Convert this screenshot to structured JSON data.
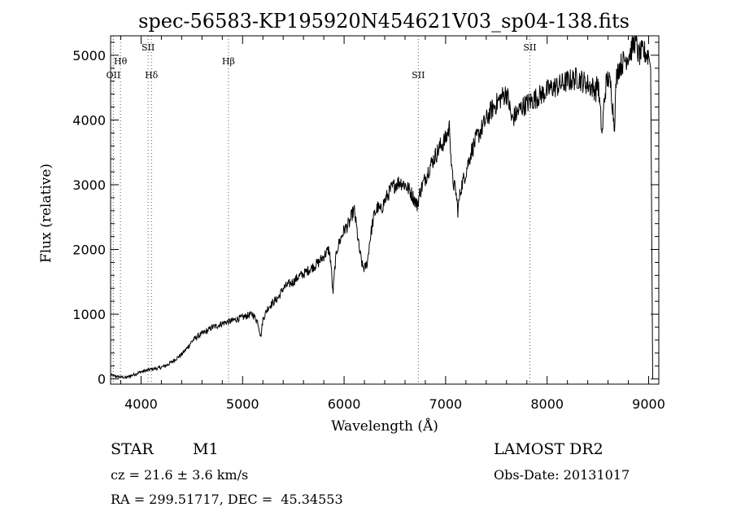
{
  "chart_data": {
    "type": "line",
    "title": "spec-56583-KP195920N454621V03_sp04-138.fits",
    "xlabel": "Wavelength (Å)",
    "ylabel": "Flux (relative)",
    "xlim": [
      3700,
      9100
    ],
    "ylim": [
      -80,
      5300
    ],
    "x_ticks": [
      4000,
      5000,
      6000,
      7000,
      8000,
      9000
    ],
    "y_ticks": [
      0,
      1000,
      2000,
      3000,
      4000,
      5000
    ],
    "grid": false,
    "line_markers": [
      {
        "label": "OII",
        "x": 3727,
        "row": 3
      },
      {
        "label": "Hθ",
        "x": 3797,
        "row": 2
      },
      {
        "label": "SII",
        "x": 4069,
        "row": 1
      },
      {
        "label": "Hδ",
        "x": 4102,
        "row": 3
      },
      {
        "label": "Hβ",
        "x": 4861,
        "row": 2
      },
      {
        "label": "SII",
        "x": 6731,
        "row": 3
      },
      {
        "label": "SII",
        "x": 7830,
        "row": 1
      }
    ],
    "series": [
      {
        "name": "flux",
        "x": [
          3700,
          3750,
          3800,
          3850,
          3900,
          3950,
          4000,
          4050,
          4100,
          4150,
          4200,
          4250,
          4300,
          4350,
          4400,
          4450,
          4500,
          4550,
          4600,
          4650,
          4700,
          4750,
          4800,
          4850,
          4900,
          4950,
          5000,
          5050,
          5100,
          5150,
          5180,
          5200,
          5250,
          5300,
          5350,
          5400,
          5450,
          5500,
          5550,
          5600,
          5650,
          5700,
          5750,
          5800,
          5850,
          5870,
          5890,
          5910,
          5930,
          5950,
          6000,
          6050,
          6080,
          6100,
          6130,
          6150,
          6180,
          6200,
          6230,
          6250,
          6280,
          6300,
          6330,
          6360,
          6400,
          6450,
          6500,
          6550,
          6600,
          6650,
          6700,
          6720,
          6750,
          6800,
          6850,
          6900,
          6950,
          7000,
          7040,
          7050,
          7060,
          7080,
          7100,
          7120,
          7150,
          7200,
          7250,
          7300,
          7350,
          7400,
          7450,
          7500,
          7550,
          7600,
          7620,
          7650,
          7700,
          7750,
          7800,
          7850,
          7900,
          7950,
          8000,
          8050,
          8100,
          8150,
          8200,
          8250,
          8300,
          8350,
          8400,
          8450,
          8480,
          8500,
          8520,
          8542,
          8560,
          8580,
          8600,
          8630,
          8662,
          8680,
          8700,
          8750,
          8800,
          8850,
          8870,
          8900,
          8950,
          9000,
          9020,
          9040
        ],
        "y": [
          60,
          40,
          30,
          20,
          50,
          80,
          110,
          130,
          150,
          160,
          180,
          210,
          260,
          320,
          380,
          470,
          580,
          650,
          700,
          740,
          800,
          820,
          860,
          880,
          900,
          930,
          950,
          980,
          1000,
          880,
          650,
          920,
          1100,
          1180,
          1250,
          1400,
          1460,
          1500,
          1580,
          1620,
          1680,
          1740,
          1800,
          1900,
          2000,
          1800,
          1300,
          1750,
          2000,
          2100,
          2300,
          2400,
          2550,
          2600,
          2250,
          2000,
          1750,
          1700,
          1800,
          2100,
          2400,
          2550,
          2650,
          2600,
          2750,
          2900,
          3000,
          3050,
          3000,
          2900,
          2750,
          2680,
          2900,
          3100,
          3300,
          3450,
          3600,
          3700,
          3900,
          3550,
          3200,
          3000,
          2900,
          2600,
          2950,
          3200,
          3500,
          3700,
          3850,
          4000,
          4150,
          4250,
          4350,
          4420,
          4300,
          4000,
          4100,
          4200,
          4250,
          4300,
          4350,
          4400,
          4450,
          4500,
          4520,
          4560,
          4600,
          4620,
          4650,
          4600,
          4550,
          4500,
          4450,
          4600,
          4200,
          3750,
          4250,
          4550,
          4650,
          4500,
          3900,
          4600,
          4800,
          4900,
          5000,
          5150,
          5250,
          5000,
          5050,
          5000,
          4800,
          0
        ]
      }
    ]
  },
  "footer": {
    "object_class": "STAR",
    "subclass": "M1",
    "survey": "LAMOST DR2",
    "redshift": "cz = 21.6 ± 3.6 km/s",
    "obs_date": "Obs-Date: 20131017",
    "coords": "RA = 299.51717, DEC =  45.34553"
  }
}
